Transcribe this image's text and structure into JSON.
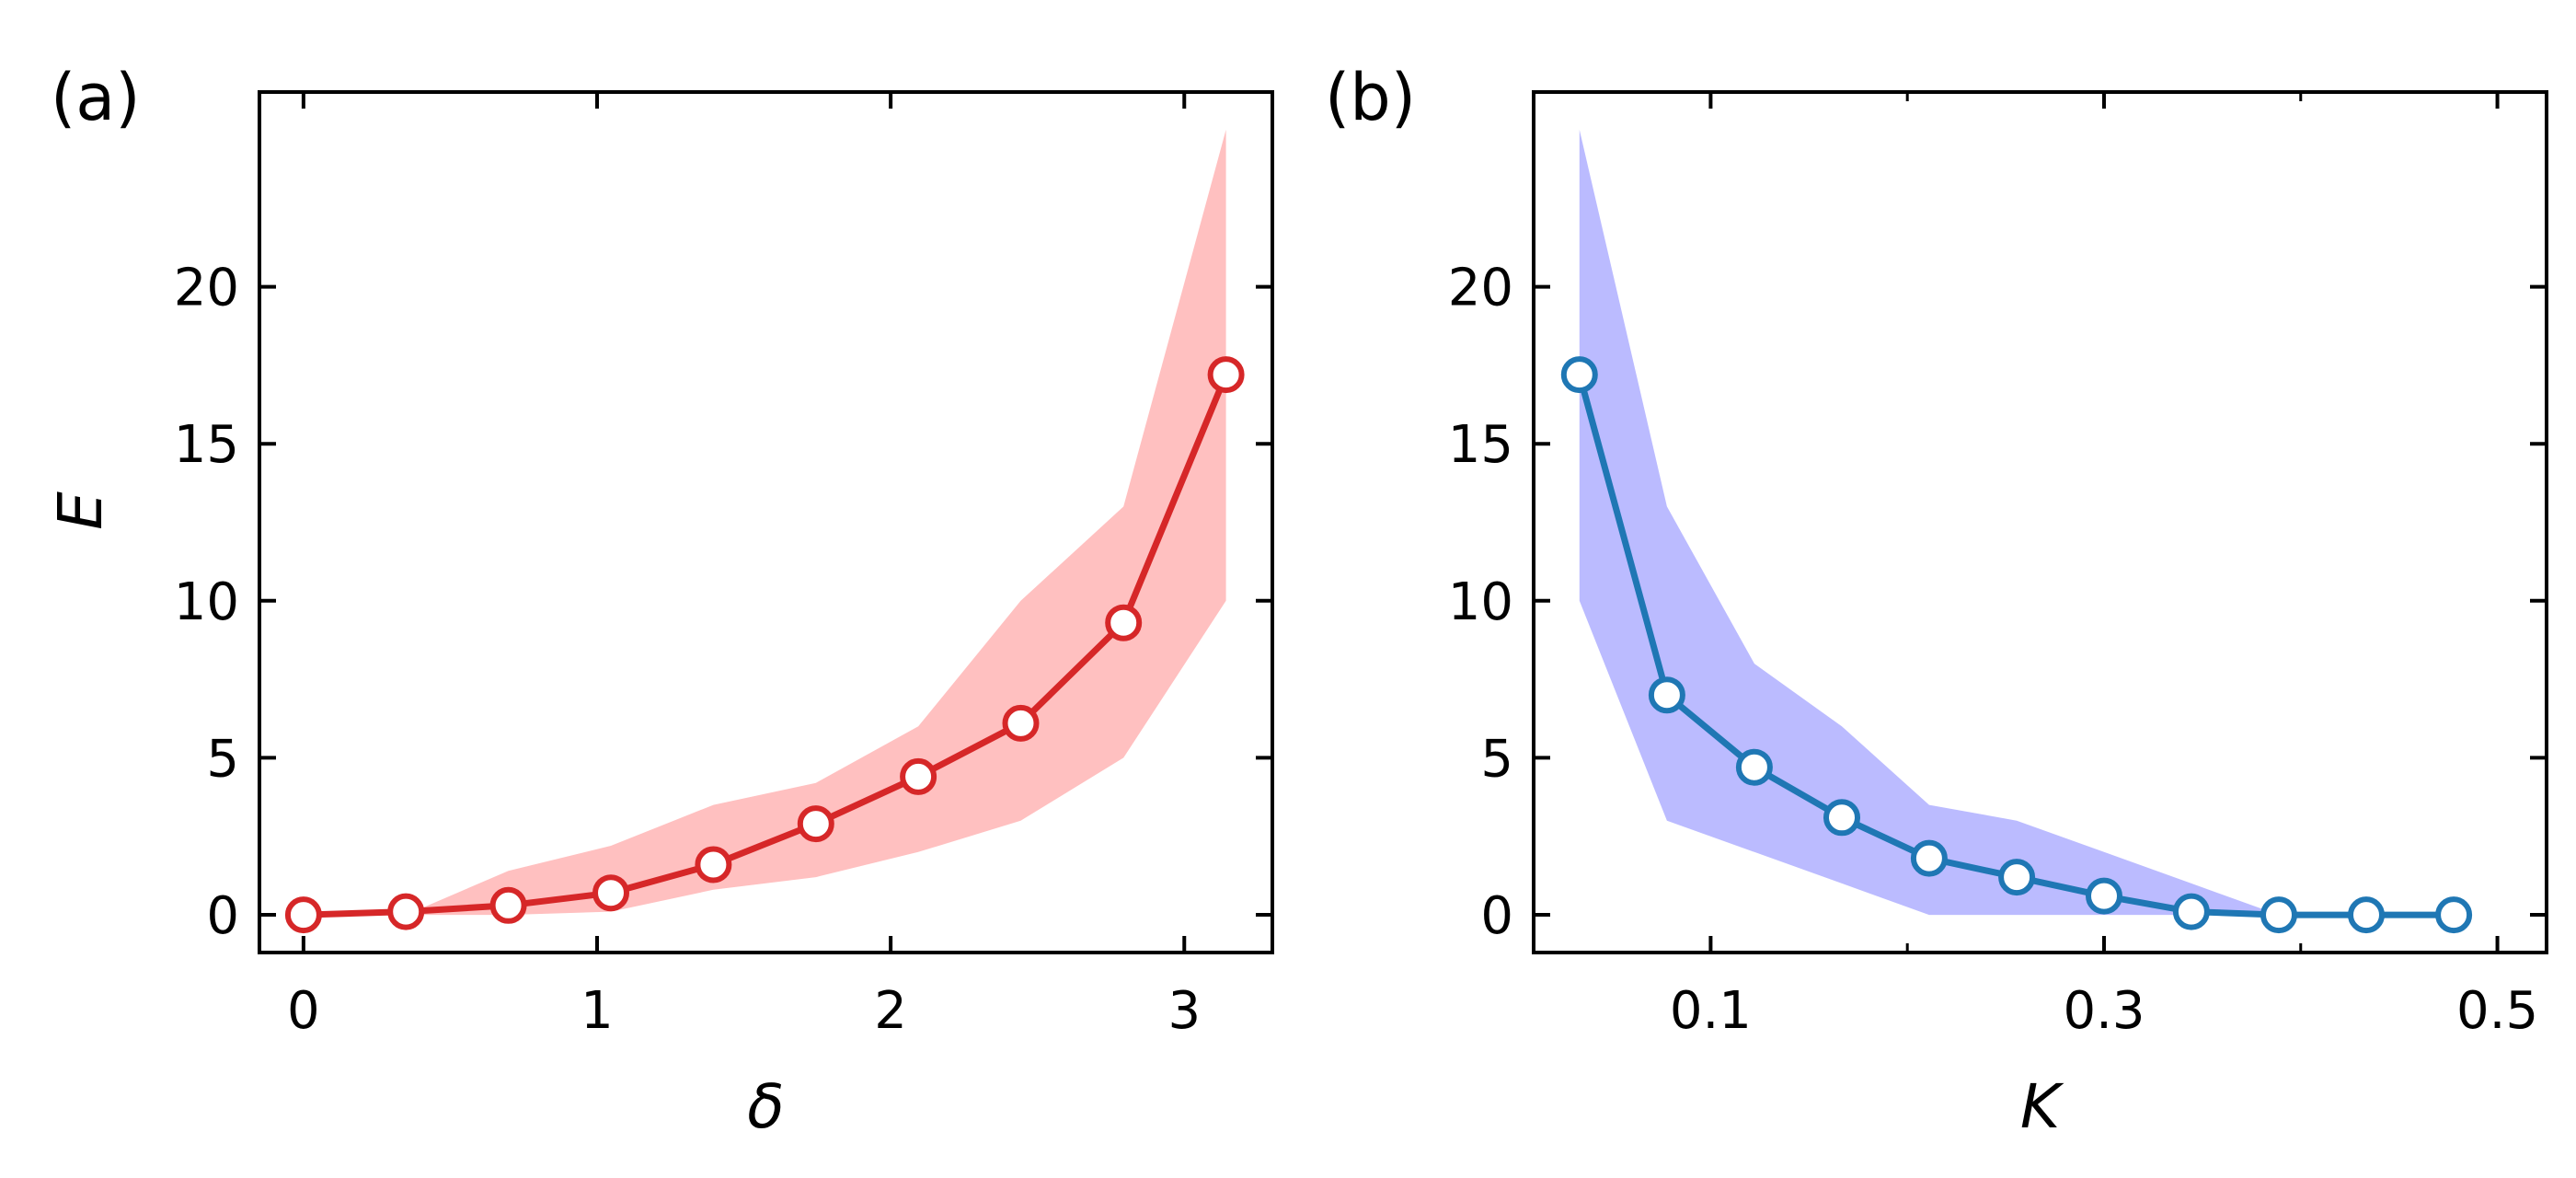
{
  "chart_data": [
    {
      "type": "line",
      "panel_label": "(a)",
      "title": "",
      "xlabel": "δ",
      "ylabel": "E",
      "xlim": [
        -0.15,
        3.3
      ],
      "ylim": [
        -1.2,
        26.2
      ],
      "xticks": [
        0,
        1,
        2,
        3
      ],
      "xtick_labels": [
        "0",
        "1",
        "2",
        "3"
      ],
      "yticks": [
        0,
        5,
        10,
        15,
        20
      ],
      "ytick_labels": [
        "0",
        "5",
        "10",
        "15",
        "20"
      ],
      "line_color": "#d62728",
      "band_color": "#ffc0c0",
      "series": [
        {
          "name": "E",
          "x": [
            0,
            0.349,
            0.698,
            1.047,
            1.396,
            1.745,
            2.094,
            2.443,
            2.793,
            3.142
          ],
          "y": [
            0.0,
            0.1,
            0.3,
            0.7,
            1.6,
            2.9,
            4.4,
            6.1,
            9.3,
            17.2
          ],
          "band_lower": [
            0.0,
            0.0,
            0.0,
            0.1,
            0.8,
            1.2,
            2.0,
            3.0,
            5.0,
            10.0
          ],
          "band_upper": [
            0.0,
            0.0,
            1.4,
            2.2,
            3.5,
            4.2,
            6.0,
            10.0,
            13.0,
            25.0
          ]
        }
      ]
    },
    {
      "type": "line",
      "panel_label": "(b)",
      "title": "",
      "xlabel": "K",
      "ylabel": "",
      "xlim": [
        0.01,
        0.525
      ],
      "ylim": [
        -1.2,
        26.2
      ],
      "xticks": [
        0.1,
        0.3,
        0.5
      ],
      "xtick_labels": [
        "0.1",
        "0.3",
        "0.5"
      ],
      "minor_xticks": [
        0.2,
        0.4
      ],
      "yticks": [
        0,
        5,
        10,
        15,
        20
      ],
      "ytick_labels": [
        "0",
        "5",
        "10",
        "15",
        "20"
      ],
      "line_color": "#1f77b4",
      "band_color": "#bbbbff",
      "series": [
        {
          "name": "E",
          "x": [
            0.0333,
            0.0778,
            0.1222,
            0.1667,
            0.2111,
            0.2556,
            0.3,
            0.3444,
            0.3889,
            0.4333,
            0.4778
          ],
          "y": [
            17.2,
            7.0,
            4.7,
            3.1,
            1.8,
            1.2,
            0.6,
            0.1,
            0.0,
            0.0,
            0.0
          ],
          "band_lower": [
            10.0,
            3.0,
            2.0,
            1.0,
            0.0,
            0.0,
            0.0,
            0.0,
            0.0,
            0.0,
            0.0
          ],
          "band_upper": [
            25.0,
            13.0,
            8.0,
            6.0,
            3.5,
            3.0,
            2.0,
            1.0,
            0.0,
            0.0,
            0.0
          ]
        }
      ]
    }
  ]
}
